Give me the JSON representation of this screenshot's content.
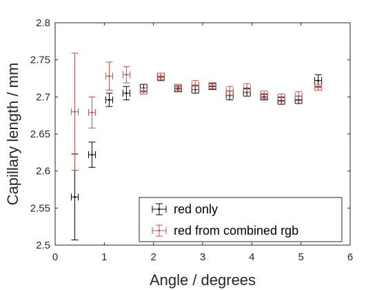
{
  "chart_data": {
    "type": "scatter",
    "title": "",
    "xlabel": "Angle / degrees",
    "ylabel": "Capillary length / mm",
    "xlim": [
      0,
      6
    ],
    "ylim": [
      2.5,
      2.8
    ],
    "xticks": [
      "0",
      "1",
      "2",
      "3",
      "4",
      "5",
      "6"
    ],
    "yticks": [
      "2.5",
      "2.55",
      "2.6",
      "2.65",
      "2.7",
      "2.75",
      "2.8"
    ],
    "grid": false,
    "legend_position": "bottom-right",
    "series": [
      {
        "name": "red only",
        "color": "#000000",
        "points": [
          {
            "x": 0.4,
            "y": 2.565,
            "yerr": 0.058,
            "xerr": 0.07
          },
          {
            "x": 0.75,
            "y": 2.622,
            "yerr": 0.017,
            "xerr": 0.07
          },
          {
            "x": 1.1,
            "y": 2.696,
            "yerr": 0.009,
            "xerr": 0.07
          },
          {
            "x": 1.45,
            "y": 2.705,
            "yerr": 0.009,
            "xerr": 0.07
          },
          {
            "x": 1.8,
            "y": 2.712,
            "yerr": 0.005,
            "xerr": 0.07
          },
          {
            "x": 2.15,
            "y": 2.727,
            "yerr": 0.005,
            "xerr": 0.07
          },
          {
            "x": 2.5,
            "y": 2.711,
            "yerr": 0.004,
            "xerr": 0.07
          },
          {
            "x": 2.85,
            "y": 2.71,
            "yerr": 0.005,
            "xerr": 0.07
          },
          {
            "x": 3.2,
            "y": 2.714,
            "yerr": 0.004,
            "xerr": 0.07
          },
          {
            "x": 3.55,
            "y": 2.702,
            "yerr": 0.006,
            "xerr": 0.07
          },
          {
            "x": 3.9,
            "y": 2.706,
            "yerr": 0.005,
            "xerr": 0.07
          },
          {
            "x": 4.25,
            "y": 2.7,
            "yerr": 0.004,
            "xerr": 0.07
          },
          {
            "x": 4.6,
            "y": 2.695,
            "yerr": 0.005,
            "xerr": 0.07
          },
          {
            "x": 4.95,
            "y": 2.696,
            "yerr": 0.005,
            "xerr": 0.07
          },
          {
            "x": 5.35,
            "y": 2.722,
            "yerr": 0.008,
            "xerr": 0.07
          }
        ]
      },
      {
        "name": "red from combined rgb",
        "color": "#c0504d",
        "points": [
          {
            "x": 0.4,
            "y": 2.68,
            "yerr": 0.079,
            "xerr": 0.07
          },
          {
            "x": 0.75,
            "y": 2.679,
            "yerr": 0.021,
            "xerr": 0.07
          },
          {
            "x": 1.1,
            "y": 2.728,
            "yerr": 0.019,
            "xerr": 0.07
          },
          {
            "x": 1.45,
            "y": 2.73,
            "yerr": 0.011,
            "xerr": 0.07
          },
          {
            "x": 1.8,
            "y": 2.708,
            "yerr": 0.004,
            "xerr": 0.07
          },
          {
            "x": 2.15,
            "y": 2.728,
            "yerr": 0.004,
            "xerr": 0.07
          },
          {
            "x": 2.5,
            "y": 2.713,
            "yerr": 0.004,
            "xerr": 0.07
          },
          {
            "x": 2.85,
            "y": 2.716,
            "yerr": 0.006,
            "xerr": 0.07
          },
          {
            "x": 3.2,
            "y": 2.715,
            "yerr": 0.004,
            "xerr": 0.07
          },
          {
            "x": 3.55,
            "y": 2.708,
            "yerr": 0.006,
            "xerr": 0.07
          },
          {
            "x": 3.9,
            "y": 2.712,
            "yerr": 0.006,
            "xerr": 0.07
          },
          {
            "x": 4.25,
            "y": 2.703,
            "yerr": 0.005,
            "xerr": 0.07
          },
          {
            "x": 4.6,
            "y": 2.699,
            "yerr": 0.005,
            "xerr": 0.07
          },
          {
            "x": 4.95,
            "y": 2.701,
            "yerr": 0.006,
            "xerr": 0.07
          },
          {
            "x": 5.35,
            "y": 2.713,
            "yerr": 0.004,
            "xerr": 0.07
          }
        ]
      }
    ]
  }
}
